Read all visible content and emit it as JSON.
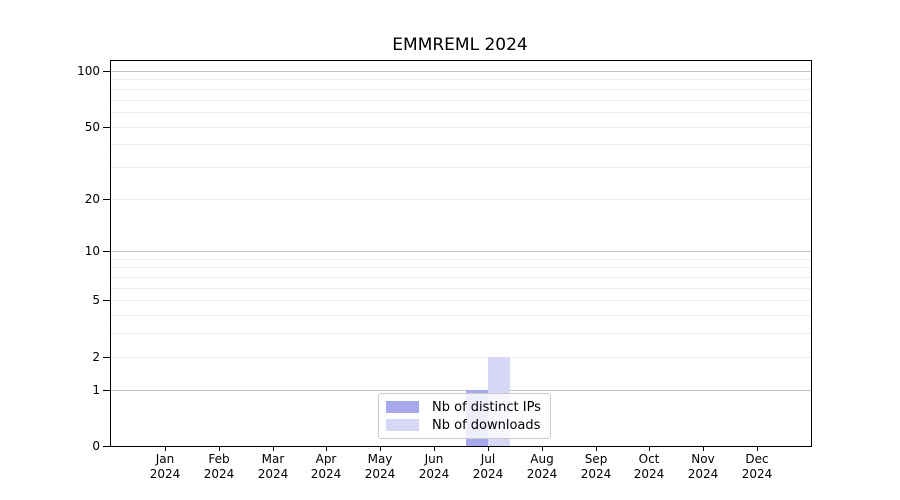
{
  "chart_data": {
    "type": "bar",
    "title": "EMMREML 2024",
    "categories": [
      "Jan",
      "Feb",
      "Mar",
      "Apr",
      "May",
      "Jun",
      "Jul",
      "Aug",
      "Sep",
      "Oct",
      "Nov",
      "Dec"
    ],
    "category_year": "2024",
    "xlabel": "",
    "ylabel": "",
    "yscale": "log1p",
    "ylim": [
      0,
      109
    ],
    "yticks": [
      0,
      1,
      2,
      5,
      10,
      20,
      50,
      100
    ],
    "major_gridlines": [
      1,
      10,
      100
    ],
    "minor_gridlines": [
      2,
      3,
      4,
      5,
      6,
      7,
      8,
      9,
      20,
      30,
      40,
      50,
      60,
      70,
      80,
      90
    ],
    "grid": true,
    "legend_position": "lower center",
    "series": [
      {
        "name": "Nb of distinct IPs",
        "color": "#a8a8ec",
        "values": [
          0,
          0,
          0,
          0,
          0,
          0,
          1,
          0,
          0,
          0,
          0,
          0
        ]
      },
      {
        "name": "Nb of downloads",
        "color": "#d7d7f6",
        "values": [
          0,
          0,
          0,
          0,
          0,
          0,
          2,
          0,
          0,
          0,
          0,
          0
        ]
      }
    ],
    "colors": {
      "axis": "#000000",
      "text": "#000000",
      "major_grid": "#c4c4c4",
      "minor_grid": "#ededed",
      "legend_border": "#cccccc"
    }
  }
}
